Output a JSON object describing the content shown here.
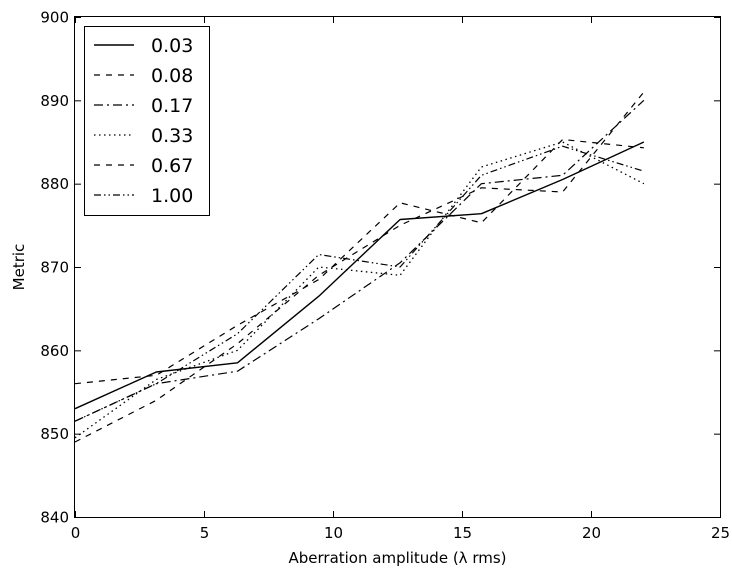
{
  "chart_data": {
    "type": "line",
    "title": "",
    "xlabel": "Aberration amplitude (λ rms)",
    "ylabel": "Metric",
    "xlim": [
      0,
      25
    ],
    "ylim": [
      840,
      900
    ],
    "xticks": [
      "0",
      "5",
      "10",
      "15",
      "20",
      "25"
    ],
    "yticks": [
      "840",
      "850",
      "860",
      "870",
      "880",
      "890",
      "900"
    ],
    "grid": false,
    "legend_position": "top-left",
    "series": [
      {
        "name": "0.03",
        "dash": "solid",
        "x": [
          0,
          3.15,
          6.3,
          9.45,
          12.6,
          15.75,
          18.9,
          22.05
        ],
        "y": [
          853.0,
          857.4,
          858.5,
          866.5,
          875.7,
          876.4,
          880.5,
          885.0
        ]
      },
      {
        "name": "0.08",
        "dash": "dashed",
        "x": [
          0,
          3.15,
          6.3,
          9.45,
          12.6,
          15.75,
          18.9,
          22.05
        ],
        "y": [
          849.0,
          854.0,
          860.8,
          869.0,
          875.0,
          879.5,
          879.0,
          891.0
        ]
      },
      {
        "name": "0.17",
        "dash": "dashdot",
        "x": [
          0,
          3.15,
          6.3,
          9.45,
          12.6,
          15.75,
          18.9,
          22.05
        ],
        "y": [
          851.5,
          856.0,
          857.5,
          863.8,
          870.5,
          880.0,
          881.0,
          890.0
        ]
      },
      {
        "name": "0.33",
        "dash": "dotted",
        "x": [
          0,
          3.15,
          6.3,
          9.45,
          12.6,
          15.75,
          18.9,
          22.05
        ],
        "y": [
          849.5,
          856.5,
          860.0,
          870.0,
          869.0,
          882.0,
          885.0,
          880.0
        ]
      },
      {
        "name": "0.67",
        "dash": "dashed",
        "x": [
          0,
          3.15,
          6.3,
          9.45,
          12.6,
          15.75,
          18.9,
          22.05
        ],
        "y": [
          856.0,
          857.0,
          863.0,
          868.5,
          877.7,
          875.3,
          885.3,
          884.3
        ]
      },
      {
        "name": "1.00",
        "dash": "dashdotdot",
        "x": [
          0,
          3.15,
          6.3,
          9.45,
          12.6,
          15.75,
          18.9,
          22.05
        ],
        "y": [
          851.5,
          856.0,
          862.0,
          871.5,
          870.0,
          881.0,
          884.5,
          881.5
        ]
      }
    ]
  }
}
